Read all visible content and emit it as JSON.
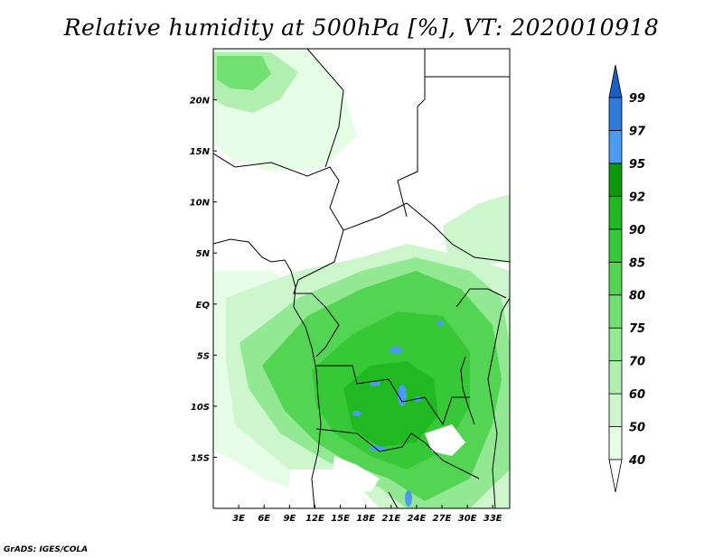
{
  "title": "Relative humidity at 500hPa [%], VT: 2020010918",
  "credit": "GrADS: IGES/COLA",
  "map": {
    "lat_labels": [
      "20N",
      "15N",
      "10N",
      "5N",
      "EQ",
      "5S",
      "10S",
      "15S"
    ],
    "lon_labels": [
      "3E",
      "6E",
      "9E",
      "12E",
      "15E",
      "18E",
      "21E",
      "24E",
      "27E",
      "30E",
      "33E"
    ],
    "lat_range": [
      -20,
      25
    ],
    "lon_range": [
      0,
      35
    ]
  },
  "colorbar": {
    "levels": [
      "40",
      "50",
      "60",
      "70",
      "75",
      "80",
      "85",
      "90",
      "92",
      "95",
      "97",
      "99"
    ],
    "colors": [
      "#ffffff",
      "#e6fde6",
      "#cdf6cd",
      "#b0efb0",
      "#93e893",
      "#73e073",
      "#53d553",
      "#37c837",
      "#21b921",
      "#0e980e",
      "#4a9cf0",
      "#2e7bd9",
      "#1b5fc4"
    ]
  }
}
